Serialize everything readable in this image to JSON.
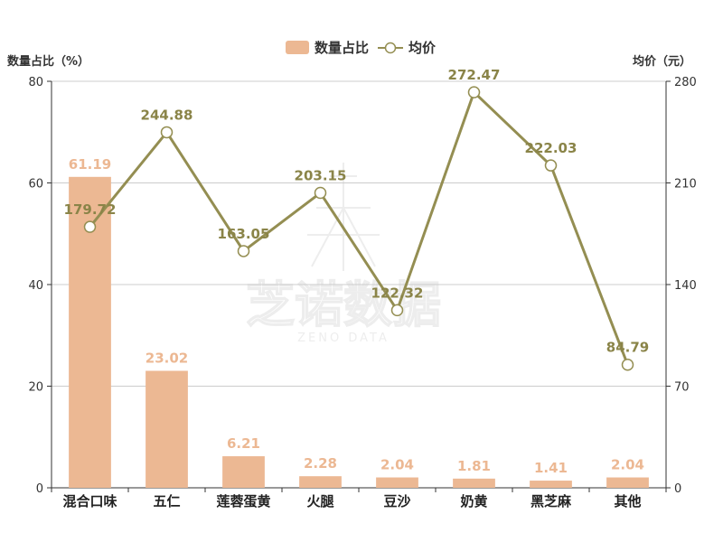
{
  "chart_data": {
    "type": "bar",
    "categories": [
      "混合口味",
      "五仁",
      "莲蓉蛋黄",
      "火腿",
      "豆沙",
      "奶黄",
      "黑芝麻",
      "其他"
    ],
    "series": [
      {
        "name": "数量占比",
        "type": "bar",
        "axis": "left",
        "values": [
          61.19,
          23.02,
          6.21,
          2.28,
          2.04,
          1.81,
          1.41,
          2.04
        ]
      },
      {
        "name": "均价",
        "type": "line",
        "axis": "right",
        "values": [
          179.72,
          244.88,
          163.05,
          203.15,
          122.32,
          272.47,
          222.03,
          84.79
        ]
      }
    ],
    "ylabel_left": "数量占比（%）",
    "ylabel_right": "均价（元）",
    "ylim_left": [
      0,
      80
    ],
    "ylim_right": [
      0,
      280
    ],
    "yticks_left": [
      "0",
      "20",
      "40",
      "60",
      "80"
    ],
    "yticks_right": [
      "0",
      "70",
      "140",
      "210",
      "280"
    ],
    "grid": true,
    "legend_position": "top-center"
  },
  "colors": {
    "bar": "#ecb893",
    "bar_label": "#ecb893",
    "line": "#948e52",
    "line_label": "#8a8448",
    "grid": "#cccccc",
    "axis": "#333333"
  },
  "watermark": {
    "cn": "芝诺数据",
    "en": "ZENO DATA"
  }
}
